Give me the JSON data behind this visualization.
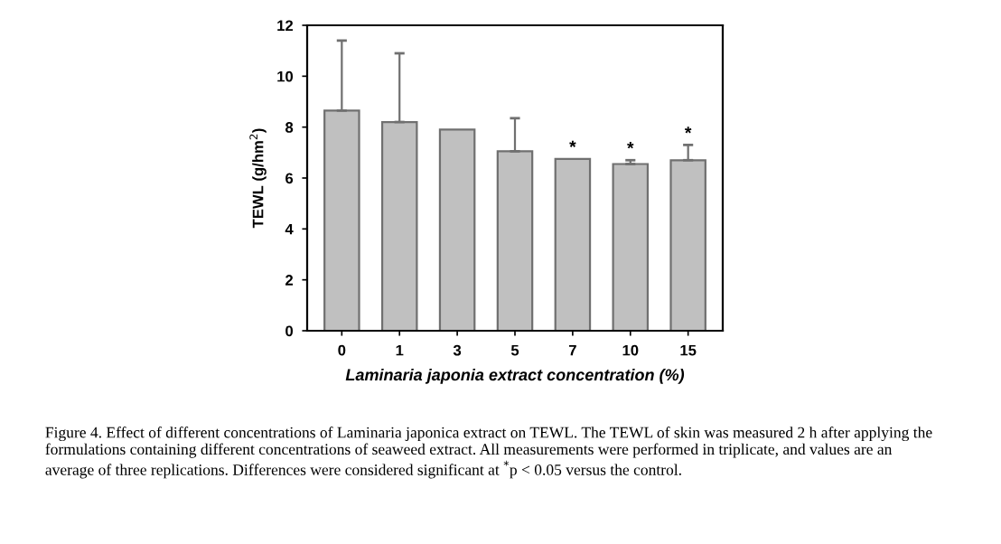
{
  "chart_data": {
    "type": "bar",
    "xlabel": "Laminaria japonia extract concentration (%)",
    "ylabel": "TEWL (g/hm$^{2}$)",
    "categories": [
      "0",
      "1",
      "3",
      "5",
      "7",
      "10",
      "15"
    ],
    "values": [
      8.65,
      8.2,
      7.9,
      7.05,
      6.75,
      6.55,
      6.7
    ],
    "errors": [
      [
        8.65,
        11.4
      ],
      [
        8.2,
        10.9
      ],
      null,
      [
        7.05,
        8.35
      ],
      null,
      [
        6.55,
        6.7
      ],
      [
        6.7,
        7.3
      ]
    ],
    "color": "#c0c0c0",
    "ylim": [
      0,
      12
    ],
    "yticks": [
      0,
      2,
      4,
      6,
      8,
      10,
      12
    ],
    "grid": false,
    "annotations": [
      {
        "text": "*",
        "x": "7",
        "y": 6.75
      },
      {
        "text": "*",
        "x": "10",
        "y": 6.7
      },
      {
        "text": "*",
        "x": "15",
        "y": 7.3
      },
      "Figure 4. Effect of different concentrations of Laminaria japonica extract on TEWL. The TEWL of skin was measured 2 h after applying the formulations containing different concentrations of seaweed extract. All measurements were performed in triplicate, and values are an average of three replications. Differences were considered significant at $^{*}$p < 0.05 versus the control."
    ]
  }
}
